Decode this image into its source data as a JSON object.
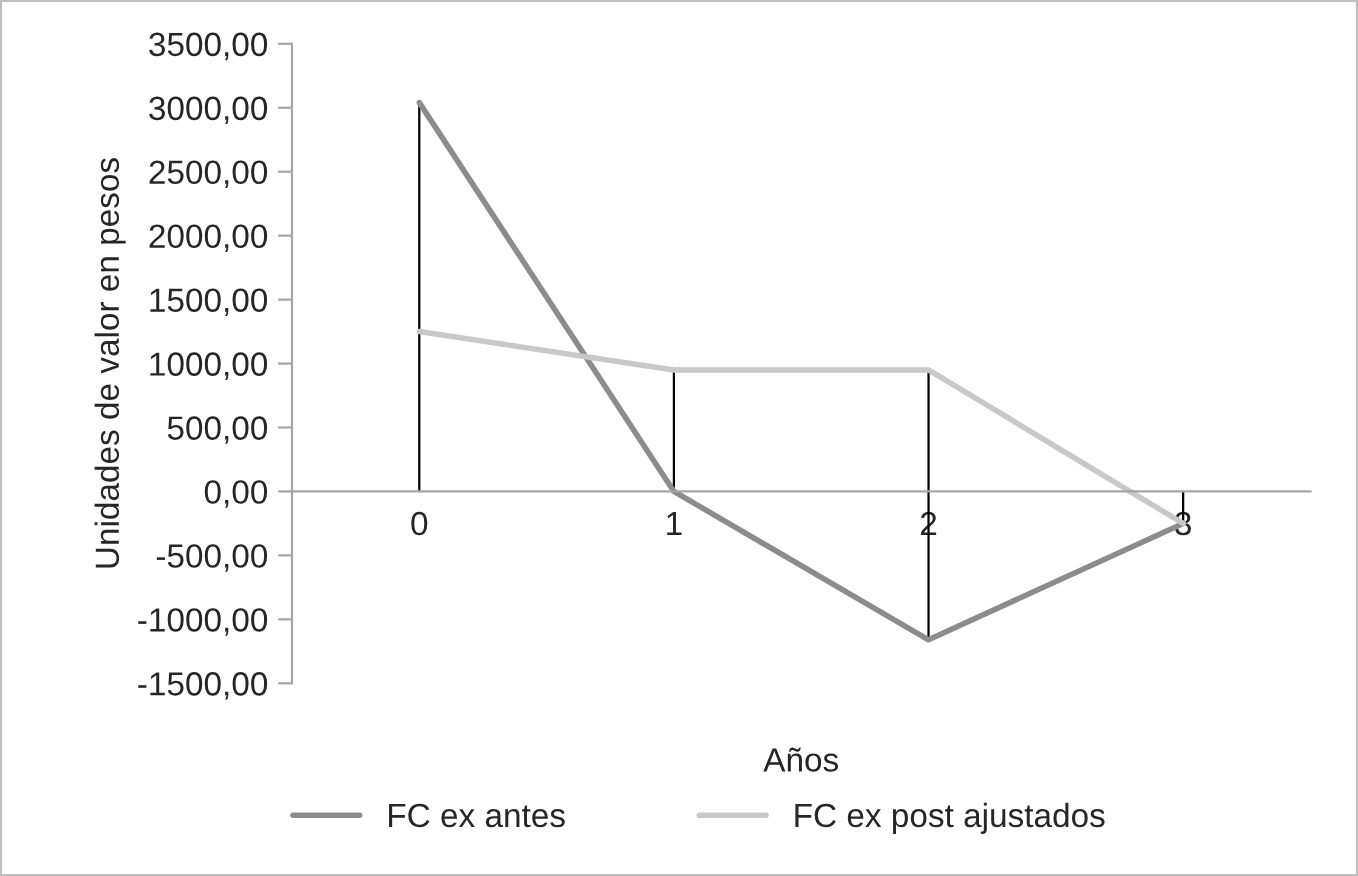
{
  "chart_data": {
    "type": "line",
    "categories": [
      "0",
      "1",
      "2",
      "3"
    ],
    "series": [
      {
        "name": "FC ex antes",
        "color": "#8c8c8c",
        "values": [
          3040,
          0,
          -1160,
          -250
        ],
        "errors": [
          [
            0,
            3040
          ],
          null,
          [
            -1160,
            0
          ],
          [
            -250,
            0
          ]
        ]
      },
      {
        "name": "FC ex post ajustados",
        "color": "#c8c8c8",
        "values": [
          1250,
          950,
          950,
          -250
        ],
        "errors": [
          null,
          [
            0,
            950
          ],
          [
            0,
            950
          ],
          null
        ]
      }
    ],
    "xlabel": "Años",
    "ylabel": "Unidades de valor en pesos",
    "ylim": [
      -1500,
      3500
    ],
    "yticks": [
      {
        "value": -1500,
        "label": "-1500,00"
      },
      {
        "value": -1000,
        "label": "-1000,00"
      },
      {
        "value": -500,
        "label": "-500,00"
      },
      {
        "value": 0,
        "label": "0,00"
      },
      {
        "value": 500,
        "label": "500,00"
      },
      {
        "value": 1000,
        "label": "1000,00"
      },
      {
        "value": 1500,
        "label": "1500,00"
      },
      {
        "value": 2000,
        "label": "2000,00"
      },
      {
        "value": 2500,
        "label": "2500,00"
      },
      {
        "value": 3000,
        "label": "3000,00"
      },
      {
        "value": 3500,
        "label": "3500,00"
      }
    ],
    "grid": false,
    "legend": "bottom",
    "marker": "none",
    "line_style": "solid"
  }
}
